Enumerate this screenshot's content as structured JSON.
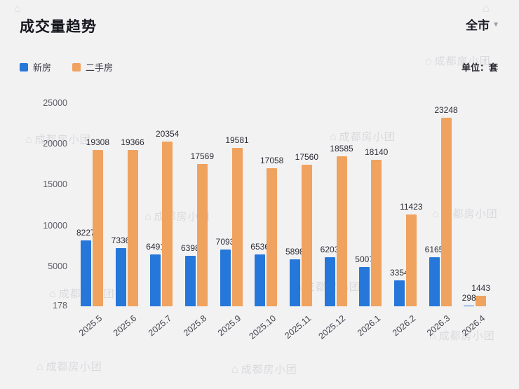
{
  "header": {
    "title": "成交量趋势",
    "scope": "全市",
    "caret": "▼"
  },
  "legend": {
    "unit_label": "单位：套"
  },
  "watermark": {
    "icon": "⌂",
    "text": "成都房小团"
  },
  "colors": {
    "new_house": "#2577d9",
    "second_hand": "#f0a25f",
    "background": "#f2f2f3"
  },
  "chart_data": {
    "type": "bar",
    "title": "成交量趋势",
    "unit": "套",
    "categories": [
      "2025.5",
      "2025.6",
      "2025.7",
      "2025.8",
      "2025.9",
      "2025.10",
      "2025.11",
      "2025.12",
      "2026.1",
      "2026.2",
      "2026.3",
      "2026.4"
    ],
    "series": [
      {
        "name": "新房",
        "color": "#2577d9",
        "values": [
          8227,
          7336,
          6491,
          6398,
          7093,
          6536,
          5898,
          6203,
          5007,
          3354,
          6165,
          298
        ]
      },
      {
        "name": "二手房",
        "color": "#f0a25f",
        "values": [
          19308,
          19366,
          20354,
          17569,
          19581,
          17058,
          17560,
          18585,
          18140,
          11423,
          23248,
          1443
        ]
      }
    ],
    "yticks": [
      25000,
      20000,
      15000,
      10000,
      5000,
      178
    ],
    "ylim": [
      178,
      27400
    ],
    "grid": false,
    "legend_position": "top-left"
  }
}
